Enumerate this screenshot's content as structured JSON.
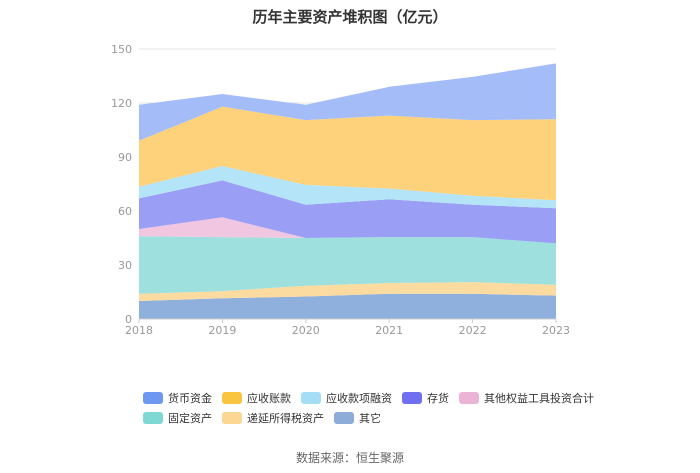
{
  "chart_data": {
    "type": "area",
    "stacked": true,
    "title": "历年主要资产堆积图（亿元）",
    "x": [
      "2018",
      "2019",
      "2020",
      "2021",
      "2022",
      "2023"
    ],
    "ylim": [
      0,
      150
    ],
    "yticks": [
      0,
      30,
      60,
      90,
      120,
      150
    ],
    "grid": true,
    "legend_position": "bottom",
    "series": [
      {
        "name": "其它",
        "color": "#8fb0dc",
        "values": [
          10.0,
          11.5,
          12.5,
          14.0,
          14.0,
          13.0
        ]
      },
      {
        "name": "递延所得税资产",
        "color": "#fbdba0",
        "values": [
          4.0,
          4.0,
          6.0,
          6.0,
          6.5,
          6.0
        ]
      },
      {
        "name": "固定资产",
        "color": "#9ee0de",
        "values": [
          32.0,
          30.0,
          26.5,
          25.5,
          25.0,
          23.0
        ]
      },
      {
        "name": "其他权益工具投资合计",
        "color": "#f0c6e0",
        "values": [
          4.0,
          11.0,
          0.0,
          0.0,
          0.0,
          0.0
        ]
      },
      {
        "name": "存货",
        "color": "#9a9ef5",
        "values": [
          17.0,
          20.5,
          18.5,
          21.0,
          18.0,
          19.5
        ]
      },
      {
        "name": "应收款项融资",
        "color": "#b4e4f8",
        "values": [
          6.5,
          8.0,
          11.0,
          6.0,
          5.0,
          4.5
        ]
      },
      {
        "name": "应收账款",
        "color": "#fdd27a",
        "values": [
          25.5,
          33.0,
          36.0,
          40.5,
          42.0,
          45.0
        ]
      },
      {
        "name": "货币资金",
        "color": "#a4bdf9",
        "values": [
          20.0,
          7.0,
          8.5,
          16.0,
          24.0,
          31.0
        ]
      }
    ]
  },
  "legend": {
    "row1": [
      {
        "label": "货币资金",
        "color": "#6e97f2"
      },
      {
        "label": "应收账款",
        "color": "#f9c541"
      },
      {
        "label": "应收款项融资",
        "color": "#a5dcf6"
      },
      {
        "label": "存货",
        "color": "#6f6ff0"
      },
      {
        "label": "其他权益工具投资合计",
        "color": "#ebb4d6"
      }
    ],
    "row2": [
      {
        "label": "固定资产",
        "color": "#7fd8d4"
      },
      {
        "label": "递延所得税资产",
        "color": "#fcd793"
      },
      {
        "label": "其它",
        "color": "#8eacd8"
      }
    ]
  },
  "source": "数据来源：恒生聚源"
}
